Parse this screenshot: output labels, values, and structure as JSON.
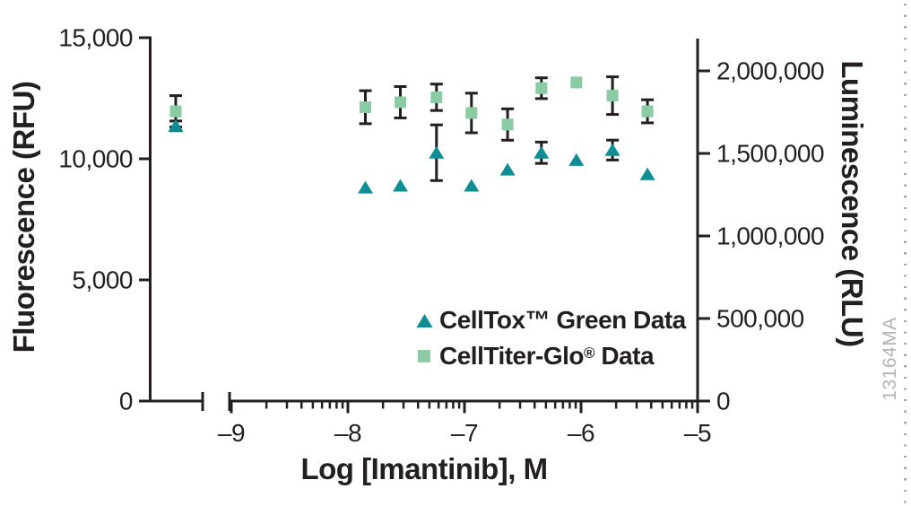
{
  "watermark": "13164MA",
  "colors": {
    "black": "#231f20",
    "celltox_teal": "#0e8d95",
    "celltiterglo_green": "#8bcba3",
    "watermark_grey": "#b3b3b3",
    "dotted_rule_grey": "#a6a6a6"
  },
  "chart_data": {
    "type": "scatter",
    "title": "",
    "xlabel": "Log [Imantinib], M",
    "ylabel_left": "Fluorescence (RFU)",
    "ylabel_right": "Luminescence (RLU)",
    "x_axis": {
      "scale": "log10",
      "range": [
        -9,
        -5
      ],
      "ticks": [
        -9,
        -8,
        -7,
        -6,
        -5
      ],
      "tick_labels": [
        "–9",
        "–8",
        "–7",
        "–6",
        "–5"
      ],
      "minor_ticks_per_decade": [
        2,
        3,
        4,
        5,
        6,
        7,
        8,
        9
      ],
      "axis_break": "broken axis before -9; untreated control point plotted left of break",
      "grid": "off"
    },
    "y_left": {
      "label": "Fluorescence (RFU)",
      "range": [
        0,
        15000
      ],
      "ticks": [
        0,
        5000,
        10000,
        15000
      ],
      "tick_labels": [
        "0",
        "5,000",
        "10,000",
        "15,000"
      ]
    },
    "y_right": {
      "label": "Luminescence (RLU)",
      "range": [
        0,
        2000000
      ],
      "ticks": [
        0,
        500000,
        1000000,
        1500000,
        2000000
      ],
      "tick_labels": [
        "0",
        "500,000",
        "1,000,000",
        "1,500,000",
        "2,000,000"
      ]
    },
    "series": [
      {
        "name": "CellTiter-Glo® Data",
        "marker": "square",
        "axis": "right",
        "units": "RLU",
        "control_point": {
          "y": 1755000,
          "err": 95000
        },
        "x": [
          -7.85,
          -7.55,
          -7.24,
          -6.94,
          -6.63,
          -6.34,
          -6.04,
          -5.73,
          -5.43
        ],
        "y": [
          1780000,
          1810000,
          1840000,
          1745000,
          1675000,
          1895000,
          1930000,
          1850000,
          1755000
        ],
        "err": [
          100000,
          95000,
          80000,
          120000,
          95000,
          63000,
          0,
          114000,
          70000
        ]
      },
      {
        "name": "CellTox™ Green Data",
        "marker": "triangle",
        "axis": "left",
        "units": "RFU",
        "control_point": {
          "y": 11360,
          "err": 200
        },
        "x": [
          -7.85,
          -7.55,
          -7.24,
          -6.94,
          -6.63,
          -6.34,
          -6.04,
          -5.73,
          -5.43
        ],
        "y": [
          8810,
          8890,
          10250,
          8890,
          9550,
          10250,
          9950,
          10360,
          9360
        ],
        "err": [
          0,
          0,
          1150,
          0,
          0,
          440,
          0,
          410,
          0
        ]
      }
    ],
    "legend": [
      {
        "marker": "triangle",
        "name": "CellTox",
        "mark": "™",
        "suffix": " Green Data"
      },
      {
        "marker": "square",
        "name": "CellTiter-Glo",
        "mark": "®",
        "suffix": " Data"
      }
    ],
    "legend_position": "inside lower-right of plot"
  }
}
